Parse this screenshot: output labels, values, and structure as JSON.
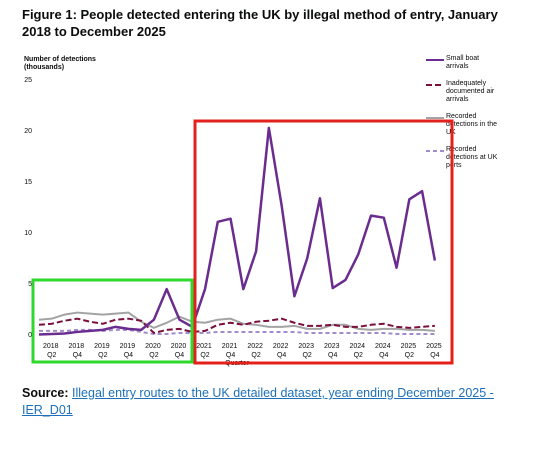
{
  "title": "Figure 1: People detected entering the UK by illegal method of entry, January 2018 to December 2025",
  "chart_data": {
    "type": "line",
    "y_label": "Number of detections (thousands)",
    "x_label": "Quarter",
    "categories": [
      null,
      "2018 Q2",
      null,
      "2018 Q4",
      null,
      "2019 Q2",
      null,
      "2019 Q4",
      null,
      "2020 Q2",
      null,
      "2020 Q4",
      null,
      "2021 Q2",
      null,
      "2021 Q4",
      null,
      "2022 Q2",
      null,
      "2022 Q4",
      null,
      "2023 Q2",
      null,
      "2023 Q4",
      null,
      "2024 Q2",
      null,
      "2024 Q4",
      null,
      "2025 Q2",
      null,
      "2025 Q4"
    ],
    "series": [
      {
        "name": "Small boat arrivals",
        "color": "#6a2c8e",
        "dash": "none",
        "values": [
          0.05,
          0.1,
          0.15,
          0.3,
          0.4,
          0.5,
          0.8,
          0.6,
          0.5,
          1.5,
          4.5,
          1.5,
          0.8,
          4.5,
          11.1,
          11.4,
          4.5,
          8.2,
          20.3,
          12.7,
          3.8,
          7.5,
          13.4,
          4.6,
          5.4,
          7.9,
          11.7,
          11.5,
          6.6,
          13.3,
          14.1,
          7.3
        ]
      },
      {
        "name": "Inadequately documented air arrivals",
        "color": "#7a0f3d",
        "dash": "6,3",
        "values": [
          1.0,
          1.1,
          1.4,
          1.6,
          1.3,
          1.1,
          1.5,
          1.6,
          1.4,
          0.2,
          0.5,
          0.6,
          0.3,
          0.4,
          1.0,
          1.2,
          1.0,
          1.3,
          1.4,
          1.6,
          1.2,
          0.9,
          0.9,
          1.0,
          0.8,
          0.8,
          1.0,
          1.1,
          0.8,
          0.7,
          0.8,
          0.9
        ]
      },
      {
        "name": "Recorded detections in the UK",
        "color": "#a3a3a3",
        "dash": "none",
        "values": [
          1.5,
          1.6,
          2.0,
          2.2,
          2.1,
          2.0,
          2.1,
          2.2,
          1.3,
          0.7,
          1.2,
          1.8,
          1.3,
          1.2,
          1.5,
          1.6,
          1.1,
          1.0,
          0.8,
          0.8,
          0.9,
          0.6,
          0.6,
          1.0,
          1.0,
          0.6,
          0.5,
          0.6,
          0.6,
          0.5,
          0.5,
          0.4
        ]
      },
      {
        "name": "Recorded detections at UK ports",
        "color": "#a08ccc",
        "dash": "4,3",
        "values": [
          0.4,
          0.4,
          0.4,
          0.5,
          0.5,
          0.4,
          0.5,
          0.5,
          0.3,
          0.1,
          0.1,
          0.2,
          0.2,
          0.2,
          0.3,
          0.3,
          0.3,
          0.3,
          0.3,
          0.3,
          0.3,
          0.2,
          0.2,
          0.2,
          0.2,
          0.2,
          0.2,
          0.2,
          0.1,
          0.1,
          0.1,
          0.1
        ]
      }
    ],
    "ylim": [
      0,
      25
    ],
    "yticks": [
      0,
      5,
      10,
      15,
      20,
      25
    ],
    "grid": false,
    "legend": "right"
  },
  "source": {
    "label": "Source:",
    "link": "Illegal entry routes to the UK detailed dataset, year ending December 2025 - IER_D01"
  }
}
